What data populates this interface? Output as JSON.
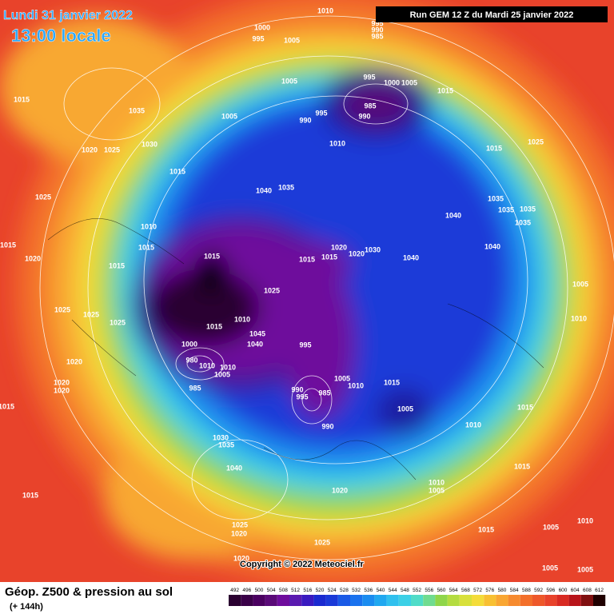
{
  "header": {
    "date": "Lundi 31 janvier 2022",
    "time": "13:00 locale",
    "run": "Run GEM 12 Z du Mardi 25 janvier 2022"
  },
  "copyright": "Copyright © 2022 Meteociel.fr",
  "footer": {
    "title": "Géop. Z500 & pression au sol",
    "lead": "(+ 144h)"
  },
  "colorbar": {
    "labels": [
      492,
      496,
      500,
      504,
      508,
      512,
      516,
      520,
      524,
      528,
      532,
      536,
      540,
      544,
      548,
      552,
      556,
      560,
      564,
      568,
      572,
      576,
      580,
      584,
      588,
      592,
      596,
      600,
      604,
      608,
      612
    ]
  },
  "isobar_labels": [
    1010,
    1000,
    995,
    1005,
    995,
    990,
    985,
    1015,
    1035,
    1005,
    995,
    985,
    990,
    995,
    990,
    1000,
    1005,
    1015,
    1005,
    1010,
    1030,
    1020,
    1025,
    1025,
    1015,
    1015,
    1040,
    1035,
    1025,
    1010,
    1035,
    1040,
    1035,
    1035,
    1035,
    1015,
    1015,
    1020,
    1015,
    1015,
    1020,
    1030,
    1040,
    1040,
    1020,
    1015,
    1015,
    1025,
    1005,
    1025,
    1025,
    1025,
    1010,
    1015,
    1045,
    1040,
    1000,
    995,
    1010,
    1020,
    980,
    1010,
    1010,
    1005,
    985,
    1005,
    1010,
    1015,
    1020,
    1020,
    990,
    995,
    985,
    1015,
    1005,
    1015,
    990,
    1010,
    1030,
    1035,
    1040,
    1015,
    1020,
    1010,
    1005,
    1015,
    1025,
    1020,
    1015,
    1005,
    1010,
    1025,
    1020,
    1005,
    1005
  ]
}
